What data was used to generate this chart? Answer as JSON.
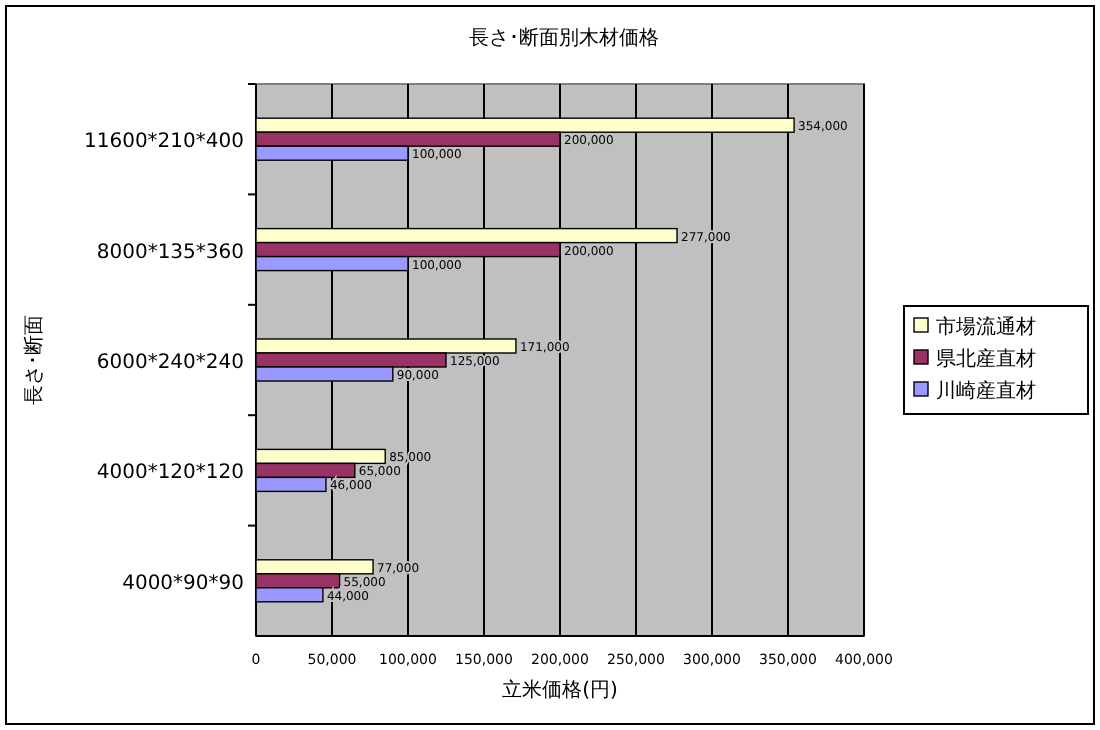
{
  "chart_data": {
    "type": "bar",
    "orientation": "horizontal",
    "title": "長さ･断面別木材価格",
    "xlabel": "立米価格(円)",
    "ylabel": "長さ･断面",
    "categories": [
      "11600*210*400",
      "8000*135*360",
      "6000*240*240",
      "4000*120*120",
      "4000*90*90"
    ],
    "series": [
      {
        "name": "市場流通材",
        "color": "#ffffcc",
        "values": [
          354000,
          277000,
          171000,
          85000,
          77000
        ],
        "value_labels": [
          "354,000",
          "277,000",
          "171,000",
          "85,000",
          "77,000"
        ]
      },
      {
        "name": "県北産直材",
        "color": "#993366",
        "values": [
          200000,
          200000,
          125000,
          65000,
          55000
        ],
        "value_labels": [
          "200,000",
          "200,000",
          "125,000",
          "65,000",
          "55,000"
        ]
      },
      {
        "name": "川崎産直材",
        "color": "#9999ff",
        "values": [
          100000,
          100000,
          90000,
          46000,
          44000
        ],
        "value_labels": [
          "100,000",
          "100,000",
          "90,000",
          "46,000",
          "44,000"
        ]
      }
    ],
    "xlim": [
      0,
      400000
    ],
    "xticks": [
      0,
      {
        "value": 50000,
        "label": "50,000"
      },
      {
        "value": 100000,
        "label": "100,000"
      },
      {
        "value": 150000,
        "label": "150,000"
      },
      {
        "value": 200000,
        "label": "200,000"
      },
      {
        "value": 250000,
        "label": "250,000"
      },
      {
        "value": 300000,
        "label": "300,000"
      },
      {
        "value": 350000,
        "label": "350,000"
      },
      {
        "value": 400000,
        "label": "400,000"
      }
    ],
    "grid": "x",
    "legend": "right"
  }
}
